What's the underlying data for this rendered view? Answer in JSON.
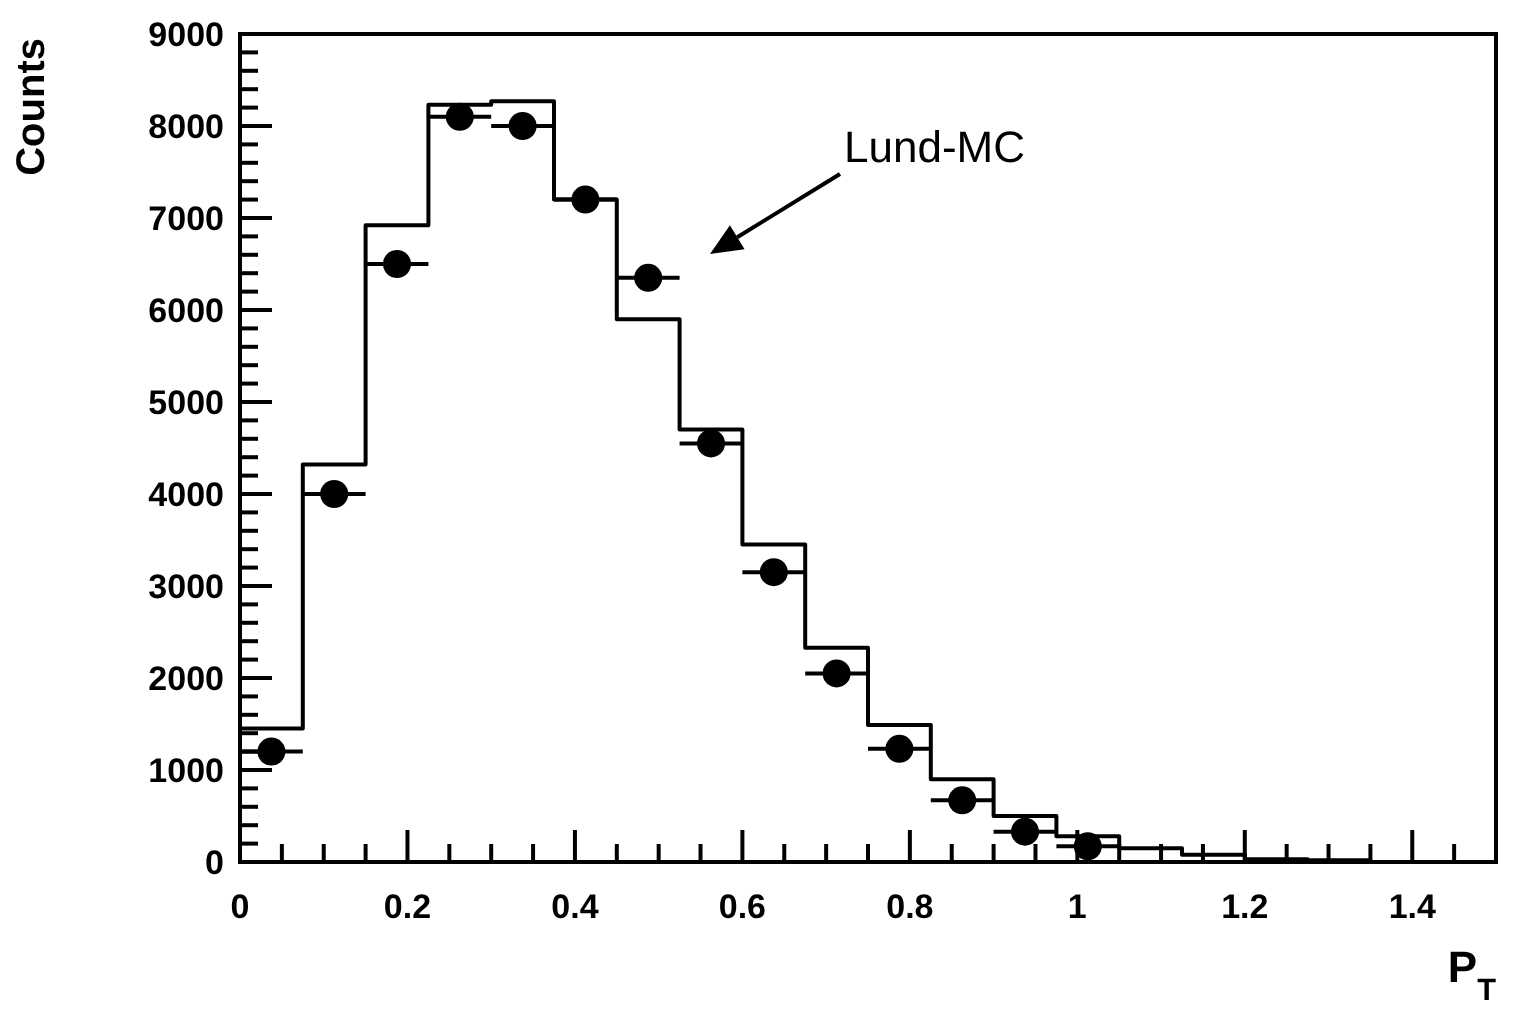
{
  "chart_data": {
    "type": "histogram",
    "ylabel": "Counts",
    "xlabel": "P$_{T}$",
    "bins": [
      0,
      0.075,
      0.15,
      0.225,
      0.3,
      0.375,
      0.45,
      0.525,
      0.6,
      0.675,
      0.75,
      0.825,
      0.9,
      0.975,
      1.05,
      1.125,
      1.2,
      1.275,
      1.35,
      1.425,
      1.5
    ],
    "series": [
      {
        "color": "#000000",
        "values": [
          1450,
          4320,
          6920,
          8230,
          8270,
          7200,
          5900,
          4700,
          3450,
          2330,
          1490,
          900,
          500,
          280,
          150,
          80,
          30,
          20,
          0,
          0
        ]
      },
      {
        "type": "scatter",
        "color": "#000000",
        "marker": "circle",
        "x": [
          0.0375,
          0.1125,
          0.1875,
          0.2625,
          0.3375,
          0.4125,
          0.4875,
          0.5625,
          0.6375,
          0.7125,
          0.7875,
          0.8625,
          0.9375,
          1.0125
        ],
        "values": [
          1200,
          4000,
          6500,
          8100,
          8000,
          7200,
          6350,
          4550,
          3150,
          2050,
          1230,
          670,
          330,
          170
        ],
        "xerrors": [
          0.0375,
          0.0375,
          0.0375,
          0.0375,
          0.0375,
          0.0375,
          0.0375,
          0.0375,
          0.0375,
          0.0375,
          0.0375,
          0.0375,
          0.0375,
          0.0375
        ]
      }
    ],
    "xlim": [
      0,
      1.5
    ],
    "ylim": [
      0,
      9000
    ],
    "xticks": [
      0,
      {
        "value": 0.05,
        "label": null
      },
      {
        "value": 0.1,
        "label": null
      },
      {
        "value": 0.15,
        "label": null
      },
      0.2,
      {
        "value": 0.25,
        "label": null
      },
      {
        "value": 0.3,
        "label": null
      },
      {
        "value": 0.35,
        "label": null
      },
      0.4,
      {
        "value": 0.45,
        "label": null
      },
      {
        "value": 0.5,
        "label": null
      },
      {
        "value": 0.55,
        "label": null
      },
      0.6,
      {
        "value": 0.65,
        "label": null
      },
      {
        "value": 0.7,
        "label": null
      },
      {
        "value": 0.75,
        "label": null
      },
      0.8,
      {
        "value": 0.85,
        "label": null
      },
      {
        "value": 0.9,
        "label": null
      },
      {
        "value": 0.95,
        "label": null
      },
      1,
      {
        "value": 1.05,
        "label": null
      },
      {
        "value": 1.1,
        "label": null
      },
      {
        "value": 1.15,
        "label": null
      },
      1.2,
      {
        "value": 1.25,
        "label": null
      },
      {
        "value": 1.3,
        "label": null
      },
      {
        "value": 1.35,
        "label": null
      },
      1.4,
      {
        "value": 1.45,
        "label": null
      }
    ],
    "yticks": [
      0,
      {
        "value": 200,
        "label": null
      },
      {
        "value": 400,
        "label": null
      },
      {
        "value": 600,
        "label": null
      },
      {
        "value": 800,
        "label": null
      },
      1000,
      {
        "value": 1200,
        "label": null
      },
      {
        "value": 1400,
        "label": null
      },
      {
        "value": 1600,
        "label": null
      },
      {
        "value": 1800,
        "label": null
      },
      2000,
      {
        "value": 2200,
        "label": null
      },
      {
        "value": 2400,
        "label": null
      },
      {
        "value": 2600,
        "label": null
      },
      {
        "value": 2800,
        "label": null
      },
      3000,
      {
        "value": 3200,
        "label": null
      },
      {
        "value": 3400,
        "label": null
      },
      {
        "value": 3600,
        "label": null
      },
      {
        "value": 3800,
        "label": null
      },
      4000,
      {
        "value": 4200,
        "label": null
      },
      {
        "value": 4400,
        "label": null
      },
      {
        "value": 4600,
        "label": null
      },
      {
        "value": 4800,
        "label": null
      },
      5000,
      {
        "value": 5200,
        "label": null
      },
      {
        "value": 5400,
        "label": null
      },
      {
        "value": 5600,
        "label": null
      },
      {
        "value": 5800,
        "label": null
      },
      6000,
      {
        "value": 6200,
        "label": null
      },
      {
        "value": 6400,
        "label": null
      },
      {
        "value": 6600,
        "label": null
      },
      {
        "value": 6800,
        "label": null
      },
      7000,
      {
        "value": 7200,
        "label": null
      },
      {
        "value": 7400,
        "label": null
      },
      {
        "value": 7600,
        "label": null
      },
      {
        "value": 7800,
        "label": null
      },
      8000,
      {
        "value": 8200,
        "label": null
      },
      {
        "value": 8400,
        "label": null
      },
      {
        "value": 8600,
        "label": null
      },
      {
        "value": 8800,
        "label": null
      },
      9000
    ],
    "annotations": [
      "Lund-MC"
    ],
    "grid": false
  }
}
